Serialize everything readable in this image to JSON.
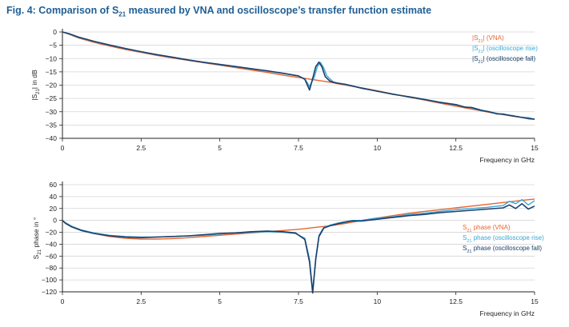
{
  "title": {
    "prefix": "Fig. 4: Comparison of S",
    "sub": "21",
    "suffix": " measured by VNA and oscilloscope’s transfer function estimate"
  },
  "colors": {
    "vna": "#e8652f",
    "rise": "#36a8d8",
    "fall": "#1c3f6b",
    "grid": "#d4d4d4",
    "axis": "#222222"
  },
  "chart_data": [
    {
      "type": "line",
      "title": "",
      "ylabel": "|S21| in dB",
      "xlabel": "Frequency in GHz",
      "xlim": [
        0,
        15
      ],
      "ylim": [
        -40,
        0
      ],
      "xticks": [
        0,
        2.5,
        5,
        7.5,
        10,
        12.5,
        15
      ],
      "xtick_labels": [
        "0",
        "2.5",
        "5",
        "7.5",
        "10",
        "12.5",
        "15"
      ],
      "yticks": [
        0,
        -5,
        -10,
        -15,
        -20,
        -25,
        -30,
        -35,
        -40
      ],
      "ytick_labels": [
        "0",
        "−5",
        "−10",
        "−15",
        "−20",
        "−25",
        "−30",
        "−35",
        "−40"
      ],
      "grid": "horizontal",
      "legend_position": "top-right",
      "legend": [
        {
          "pre": "|S",
          "sub": "21",
          "post": "| (VNA)",
          "color_key": "vna"
        },
        {
          "pre": "|S",
          "sub": "21",
          "post": "| (oscilloscope rise)",
          "color_key": "rise"
        },
        {
          "pre": "|S",
          "sub": "21",
          "post": "| (oscilloscope fall)",
          "color_key": "fall"
        }
      ],
      "series": [
        {
          "name": "|S21| (VNA)",
          "color_key": "vna",
          "x": [
            0,
            0.2,
            0.5,
            1,
            1.5,
            2,
            2.5,
            3,
            3.5,
            4,
            4.5,
            5,
            5.5,
            6,
            6.5,
            7,
            7.5,
            8,
            8.5,
            9,
            9.5,
            10,
            10.5,
            11,
            11.5,
            12,
            12.5,
            13,
            13.5,
            14,
            14.5,
            15
          ],
          "y": [
            0,
            -0.8,
            -2.2,
            -3.9,
            -5.3,
            -6.6,
            -7.7,
            -8.8,
            -9.8,
            -10.7,
            -11.6,
            -12.5,
            -13.4,
            -14.3,
            -15.2,
            -16.2,
            -17.1,
            -18,
            -18.9,
            -20,
            -21,
            -22.1,
            -23.3,
            -24.5,
            -25.6,
            -26.8,
            -27.9,
            -29,
            -30.1,
            -31.1,
            -32,
            -32.8
          ]
        },
        {
          "name": "|S21| (oscilloscope rise)",
          "color_key": "rise",
          "x": [
            0,
            0.2,
            0.5,
            1,
            1.5,
            2,
            2.5,
            3,
            3.5,
            4,
            4.5,
            5,
            5.5,
            6,
            6.5,
            7,
            7.5,
            7.7,
            7.85,
            8.0,
            8.1,
            8.2,
            8.3,
            8.4,
            8.6,
            8.8,
            9,
            9.5,
            10,
            10.5,
            11,
            11.5,
            12,
            12.5,
            12.8,
            13,
            13.3,
            13.5,
            13.8,
            14,
            14.3,
            14.5,
            14.8,
            15
          ],
          "y": [
            0,
            -0.7,
            -2.0,
            -3.6,
            -5.0,
            -6.3,
            -7.5,
            -8.6,
            -9.6,
            -10.6,
            -11.5,
            -12.3,
            -13.1,
            -13.9,
            -14.7,
            -15.6,
            -16.6,
            -17.6,
            -20.5,
            -17,
            -13,
            -11.5,
            -13.5,
            -16.5,
            -18.8,
            -19.3,
            -19.8,
            -21.2,
            -22.2,
            -23.5,
            -24.3,
            -25.3,
            -26.4,
            -27.5,
            -28.2,
            -28.6,
            -29.6,
            -29.8,
            -30.6,
            -31,
            -31.4,
            -32,
            -32.2,
            -32.8
          ]
        },
        {
          "name": "|S21| (oscilloscope fall)",
          "color_key": "fall",
          "x": [
            0,
            0.2,
            0.5,
            1,
            1.5,
            2,
            2.5,
            3,
            3.5,
            4,
            4.5,
            5,
            5.5,
            6,
            6.5,
            7,
            7.5,
            7.7,
            7.85,
            7.95,
            8.05,
            8.15,
            8.25,
            8.35,
            8.5,
            8.7,
            9,
            9.5,
            10,
            10.5,
            11,
            11.5,
            12,
            12.5,
            12.8,
            13,
            13.3,
            13.5,
            13.8,
            14,
            14.3,
            14.5,
            14.8,
            15
          ],
          "y": [
            0,
            -0.6,
            -1.9,
            -3.5,
            -4.9,
            -6.2,
            -7.4,
            -8.5,
            -9.5,
            -10.5,
            -11.4,
            -12.2,
            -13,
            -13.8,
            -14.6,
            -15.5,
            -16.5,
            -17.8,
            -21.8,
            -17.5,
            -13,
            -11.3,
            -13.3,
            -16.8,
            -18.5,
            -19.2,
            -19.7,
            -21.1,
            -22.3,
            -23.4,
            -24.4,
            -25.4,
            -26.5,
            -27.3,
            -28.3,
            -28.4,
            -29.4,
            -29.9,
            -30.8,
            -30.9,
            -31.6,
            -31.9,
            -32.6,
            -32.8
          ]
        }
      ]
    },
    {
      "type": "line",
      "title": "",
      "ylabel_pre": "S",
      "ylabel_sub": "21",
      "ylabel_post": " phase in °",
      "xlabel": "Frequency in GHz",
      "xlim": [
        0,
        15
      ],
      "ylim": [
        -120,
        60
      ],
      "xticks": [
        0,
        2.5,
        5,
        7.5,
        10,
        12.5,
        15
      ],
      "xtick_labels": [
        "0",
        "2.5",
        "5",
        "7.5",
        "10",
        "12.5",
        "15"
      ],
      "yticks": [
        60,
        40,
        20,
        0,
        -20,
        -40,
        -60,
        -80,
        -100,
        -120
      ],
      "ytick_labels": [
        "60",
        "40",
        "20",
        "0",
        "−20",
        "−40",
        "−60",
        "−80",
        "−100",
        "−120"
      ],
      "grid": "horizontal",
      "legend_position": "bottom-right",
      "legend": [
        {
          "pre": "S",
          "sub": "21",
          "post": " phase (VNA)",
          "color_key": "vna"
        },
        {
          "pre": "S",
          "sub": "21",
          "post": " phase (oscilloscope rise)",
          "color_key": "rise"
        },
        {
          "pre": "S",
          "sub": "21",
          "post": " phase (oscilloscope fall)",
          "color_key": "fall"
        }
      ],
      "series": [
        {
          "name": "S21 phase (VNA)",
          "color_key": "vna",
          "x": [
            0,
            0.1,
            0.3,
            0.6,
            1,
            1.5,
            2,
            2.5,
            3,
            3.5,
            4,
            4.5,
            5,
            5.5,
            6,
            6.5,
            7,
            7.5,
            8,
            8.5,
            9,
            9.5,
            10,
            10.5,
            11,
            11.5,
            12,
            12.5,
            13,
            13.5,
            14,
            14.5,
            15
          ],
          "y": [
            0,
            -4,
            -10,
            -16,
            -22,
            -27,
            -30,
            -31.5,
            -31.5,
            -30.5,
            -29,
            -27,
            -25,
            -23,
            -21,
            -19,
            -17,
            -15,
            -12,
            -9,
            -5,
            0,
            4,
            8,
            12,
            15,
            18,
            21,
            24,
            27,
            30,
            33,
            36
          ]
        },
        {
          "name": "S21 phase (oscilloscope rise)",
          "color_key": "rise",
          "x": [
            0,
            0.1,
            0.3,
            0.6,
            1,
            1.5,
            2,
            2.5,
            3,
            3.5,
            4,
            4.5,
            5,
            5.5,
            6,
            6.5,
            7,
            7.4,
            7.7,
            7.85,
            7.95,
            8.05,
            8.15,
            8.3,
            8.5,
            8.8,
            9.2,
            9.5,
            10,
            10.5,
            11,
            11.5,
            12,
            12.5,
            13,
            13.5,
            14,
            14.2,
            14.4,
            14.6,
            14.8,
            15
          ],
          "y": [
            0,
            -4,
            -10,
            -16,
            -21,
            -25,
            -27,
            -28,
            -28,
            -27,
            -26,
            -25,
            -23,
            -21,
            -20,
            -19,
            -20,
            -22,
            -30,
            -65,
            -118,
            -62,
            -25,
            -12,
            -8,
            -4,
            0,
            0,
            4,
            6,
            10,
            12,
            15,
            18,
            20,
            22,
            25,
            32,
            28,
            35,
            26,
            33
          ]
        },
        {
          "name": "S21 phase (oscilloscope fall)",
          "color_key": "fall",
          "x": [
            0,
            0.1,
            0.3,
            0.6,
            1,
            1.5,
            2,
            2.5,
            3,
            3.5,
            4,
            4.5,
            5,
            5.5,
            6,
            6.5,
            7,
            7.4,
            7.7,
            7.85,
            7.95,
            8.05,
            8.15,
            8.3,
            8.5,
            8.8,
            9.2,
            9.5,
            10,
            10.5,
            11,
            11.5,
            12,
            12.5,
            13,
            13.5,
            14,
            14.2,
            14.4,
            14.6,
            14.8,
            15
          ],
          "y": [
            0,
            -5,
            -11,
            -17,
            -22,
            -26,
            -28,
            -29,
            -28,
            -27,
            -26,
            -24,
            -22,
            -21,
            -19,
            -18,
            -19,
            -21,
            -32,
            -70,
            -122,
            -65,
            -27,
            -13,
            -9,
            -5,
            -1,
            -1,
            2,
            5,
            8,
            10,
            13,
            15,
            17,
            19,
            21,
            26,
            20,
            28,
            19,
            24
          ]
        }
      ]
    }
  ]
}
